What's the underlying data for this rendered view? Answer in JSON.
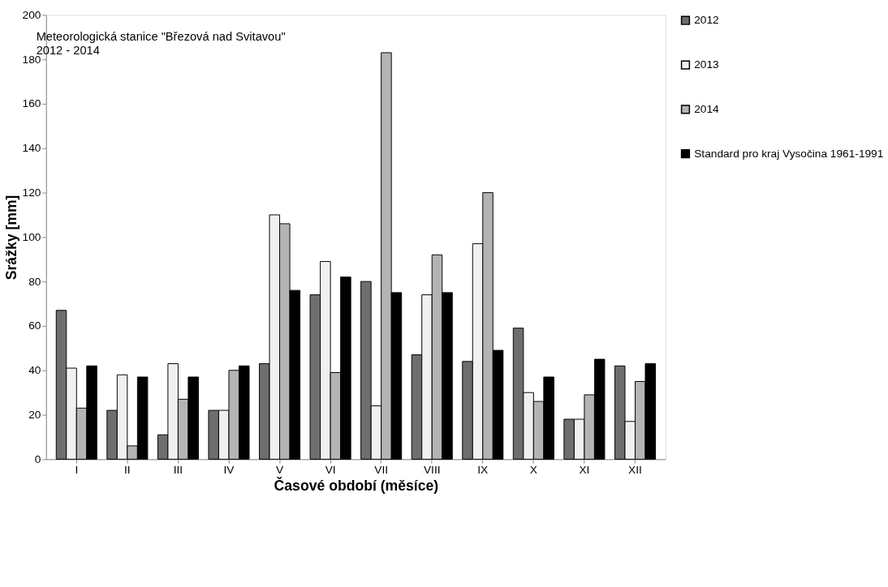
{
  "chart_data": {
    "type": "bar",
    "title": "Meteorologická stanice \"Březová nad Svitavou\"",
    "subtitle": "2012 - 2014",
    "xlabel": "Časové období (měsíce)",
    "ylabel": "Srážky [mm]",
    "categories": [
      "I",
      "II",
      "III",
      "IV",
      "V",
      "VI",
      "VII",
      "VIII",
      "IX",
      "X",
      "XI",
      "XII"
    ],
    "series": [
      {
        "name": "2012",
        "color": "#6e6e6e",
        "values": [
          67,
          22,
          11,
          22,
          43,
          74,
          80,
          47,
          44,
          59,
          18,
          42
        ]
      },
      {
        "name": "2013",
        "color": "#f0f0f0",
        "values": [
          41,
          38,
          43,
          22,
          110,
          89,
          24,
          74,
          97,
          30,
          18,
          17
        ]
      },
      {
        "name": "2014",
        "color": "#b4b4b4",
        "values": [
          23,
          6,
          27,
          40,
          106,
          39,
          183,
          92,
          120,
          26,
          29,
          35
        ]
      },
      {
        "name": "Standard pro kraj Vysočina 1961-1991",
        "color": "#000000",
        "values": [
          42,
          37,
          37,
          42,
          76,
          82,
          75,
          75,
          49,
          37,
          45,
          43
        ]
      }
    ],
    "ylim": [
      0,
      200
    ],
    "yticks": [
      0,
      20,
      40,
      60,
      80,
      100,
      120,
      140,
      160,
      180,
      200
    ],
    "grid": false,
    "legend": "right"
  }
}
